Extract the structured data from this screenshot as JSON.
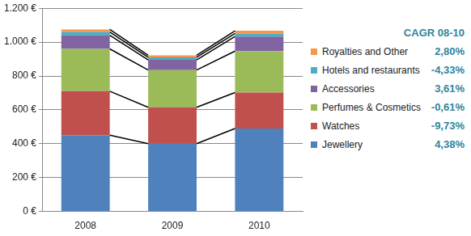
{
  "chart_data": {
    "type": "bar",
    "stacked": true,
    "grid": true,
    "legend": "right",
    "categories": [
      "2008",
      "2009",
      "2010"
    ],
    "ylim": [
      0,
      1200
    ],
    "yticks": [
      {
        "value": 0,
        "label": "0 €"
      },
      {
        "value": 200,
        "label": "200 €"
      },
      {
        "value": 400,
        "label": "400 €"
      },
      {
        "value": 600,
        "label": "600 €"
      },
      {
        "value": 800,
        "label": "800 €"
      },
      {
        "value": 1000,
        "label": "1.000 €"
      },
      {
        "value": 1200,
        "label": "1.200 €"
      }
    ],
    "cagr_title": "CAGR 08-10",
    "series": [
      {
        "name": "Jewellery",
        "color": "#4f81bd",
        "values": [
          450,
          400,
          490
        ],
        "cagr": "4,38%"
      },
      {
        "name": "Watches",
        "color": "#c0504d",
        "values": [
          260,
          215,
          212
        ],
        "cagr": "-9,73%"
      },
      {
        "name": "Perfumes & Cosmetics",
        "color": "#9bbb59",
        "values": [
          250,
          220,
          245
        ],
        "cagr": "-0,61%"
      },
      {
        "name": "Accessories",
        "color": "#8064a2",
        "values": [
          80,
          60,
          86
        ],
        "cagr": "3,61%"
      },
      {
        "name": "Hotels and restaurants",
        "color": "#4bacc6",
        "values": [
          20,
          15,
          18
        ],
        "cagr": "-4,33%"
      },
      {
        "name": "Royalties and Other",
        "color": "#f79646",
        "values": [
          15,
          12,
          16
        ],
        "cagr": "2,80%"
      }
    ]
  }
}
